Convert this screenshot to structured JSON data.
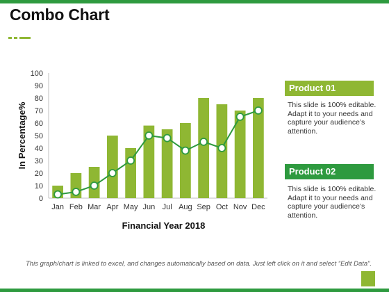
{
  "slide": {
    "title": "Combo Chart",
    "footnote": "This graph/chart is linked to excel, and changes automatically based on data. Just left click on it and select “Edit Data”."
  },
  "legend": {
    "items": [
      {
        "label": "Product 01",
        "description": "This slide is 100% editable. Adapt it to your needs and capture your audience’s attention.",
        "color": "#8fb733"
      },
      {
        "label": "Product 02",
        "description": "This slide is 100% editable. Adapt it to your needs and capture your audience’s attention.",
        "color": "#2e9a3f"
      }
    ]
  },
  "colors": {
    "accent": "#2e9a3f",
    "bar": "#8fb733",
    "line": "#2e9a3f",
    "marker_fill": "#ffffff"
  },
  "chart_data": {
    "type": "bar",
    "categories": [
      "Jan",
      "Feb",
      "Mar",
      "Apr",
      "May",
      "Jun",
      "Jul",
      "Aug",
      "Sep",
      "Oct",
      "Nov",
      "Dec"
    ],
    "series": [
      {
        "name": "Product 01",
        "type": "bar",
        "values": [
          10,
          20,
          25,
          50,
          40,
          58,
          55,
          60,
          80,
          75,
          70,
          80
        ]
      },
      {
        "name": "Product 02",
        "type": "line",
        "values": [
          3,
          5,
          10,
          20,
          30,
          50,
          48,
          38,
          45,
          40,
          65,
          70
        ]
      }
    ],
    "xlabel": "Financial Year 2018",
    "ylabel": "In Percentage%",
    "ylim": [
      0,
      100
    ],
    "yticks": [
      0,
      10,
      20,
      30,
      40,
      50,
      60,
      70,
      80,
      90,
      100
    ],
    "grid": false,
    "legend_position": "right"
  }
}
